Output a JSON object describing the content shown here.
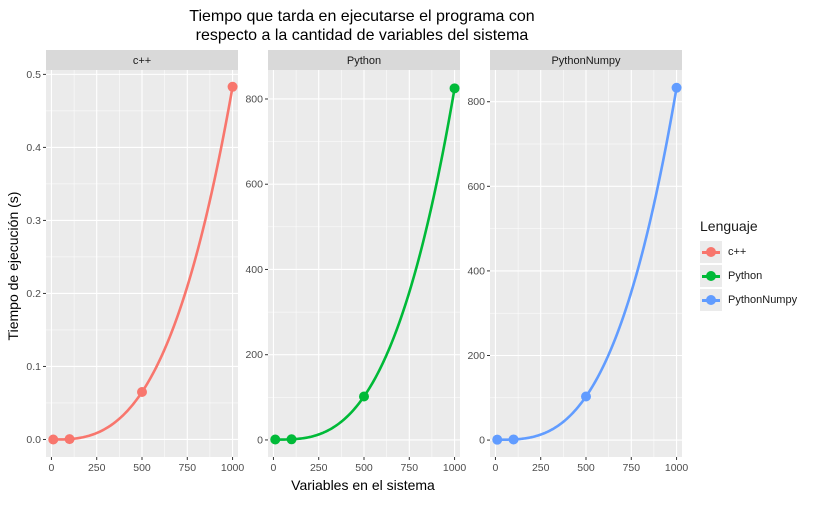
{
  "chart_data": {
    "type": "line",
    "title_line1": "Tiempo que tarda en ejecutarse el programa con",
    "title_line2": "respecto a la cantidad de variables del sistema",
    "xlabel": "Variables en el sistema",
    "ylabel": "Tiempo de ejecución (s)",
    "legend": {
      "title": "Lenguaje",
      "position": "right"
    },
    "grid": true,
    "x_ticks": [
      0,
      250,
      500,
      750,
      1000
    ],
    "xlim": [
      -30,
      1030
    ],
    "panels": [
      {
        "name": "c++",
        "color": "#F8766D",
        "ylim": [
          -0.024,
          0.506
        ],
        "y_ticks": [
          0.0,
          0.1,
          0.2,
          0.3,
          0.4,
          0.5
        ],
        "y_tick_labels": [
          "0.0",
          "0.1",
          "0.2",
          "0.3",
          "0.4",
          "0.5"
        ],
        "points": [
          {
            "x": 10,
            "y": 0.0
          },
          {
            "x": 100,
            "y": 0.0005
          },
          {
            "x": 500,
            "y": 0.065
          },
          {
            "x": 1000,
            "y": 0.483
          }
        ]
      },
      {
        "name": "Python",
        "color": "#00BA38",
        "ylim": [
          -40,
          868
        ],
        "y_ticks": [
          0,
          200,
          400,
          600,
          800
        ],
        "y_tick_labels": [
          "0",
          "200",
          "400",
          "600",
          "800"
        ],
        "points": [
          {
            "x": 10,
            "y": 1
          },
          {
            "x": 100,
            "y": 1.5
          },
          {
            "x": 500,
            "y": 102
          },
          {
            "x": 1000,
            "y": 825
          }
        ]
      },
      {
        "name": "PythonNumpy",
        "color": "#619CFF",
        "ylim": [
          -40,
          875
        ],
        "y_ticks": [
          0,
          200,
          400,
          600,
          800
        ],
        "y_tick_labels": [
          "0",
          "200",
          "400",
          "600",
          "800"
        ],
        "points": [
          {
            "x": 10,
            "y": 1
          },
          {
            "x": 100,
            "y": 1.5
          },
          {
            "x": 500,
            "y": 103
          },
          {
            "x": 1000,
            "y": 833
          }
        ]
      }
    ]
  }
}
